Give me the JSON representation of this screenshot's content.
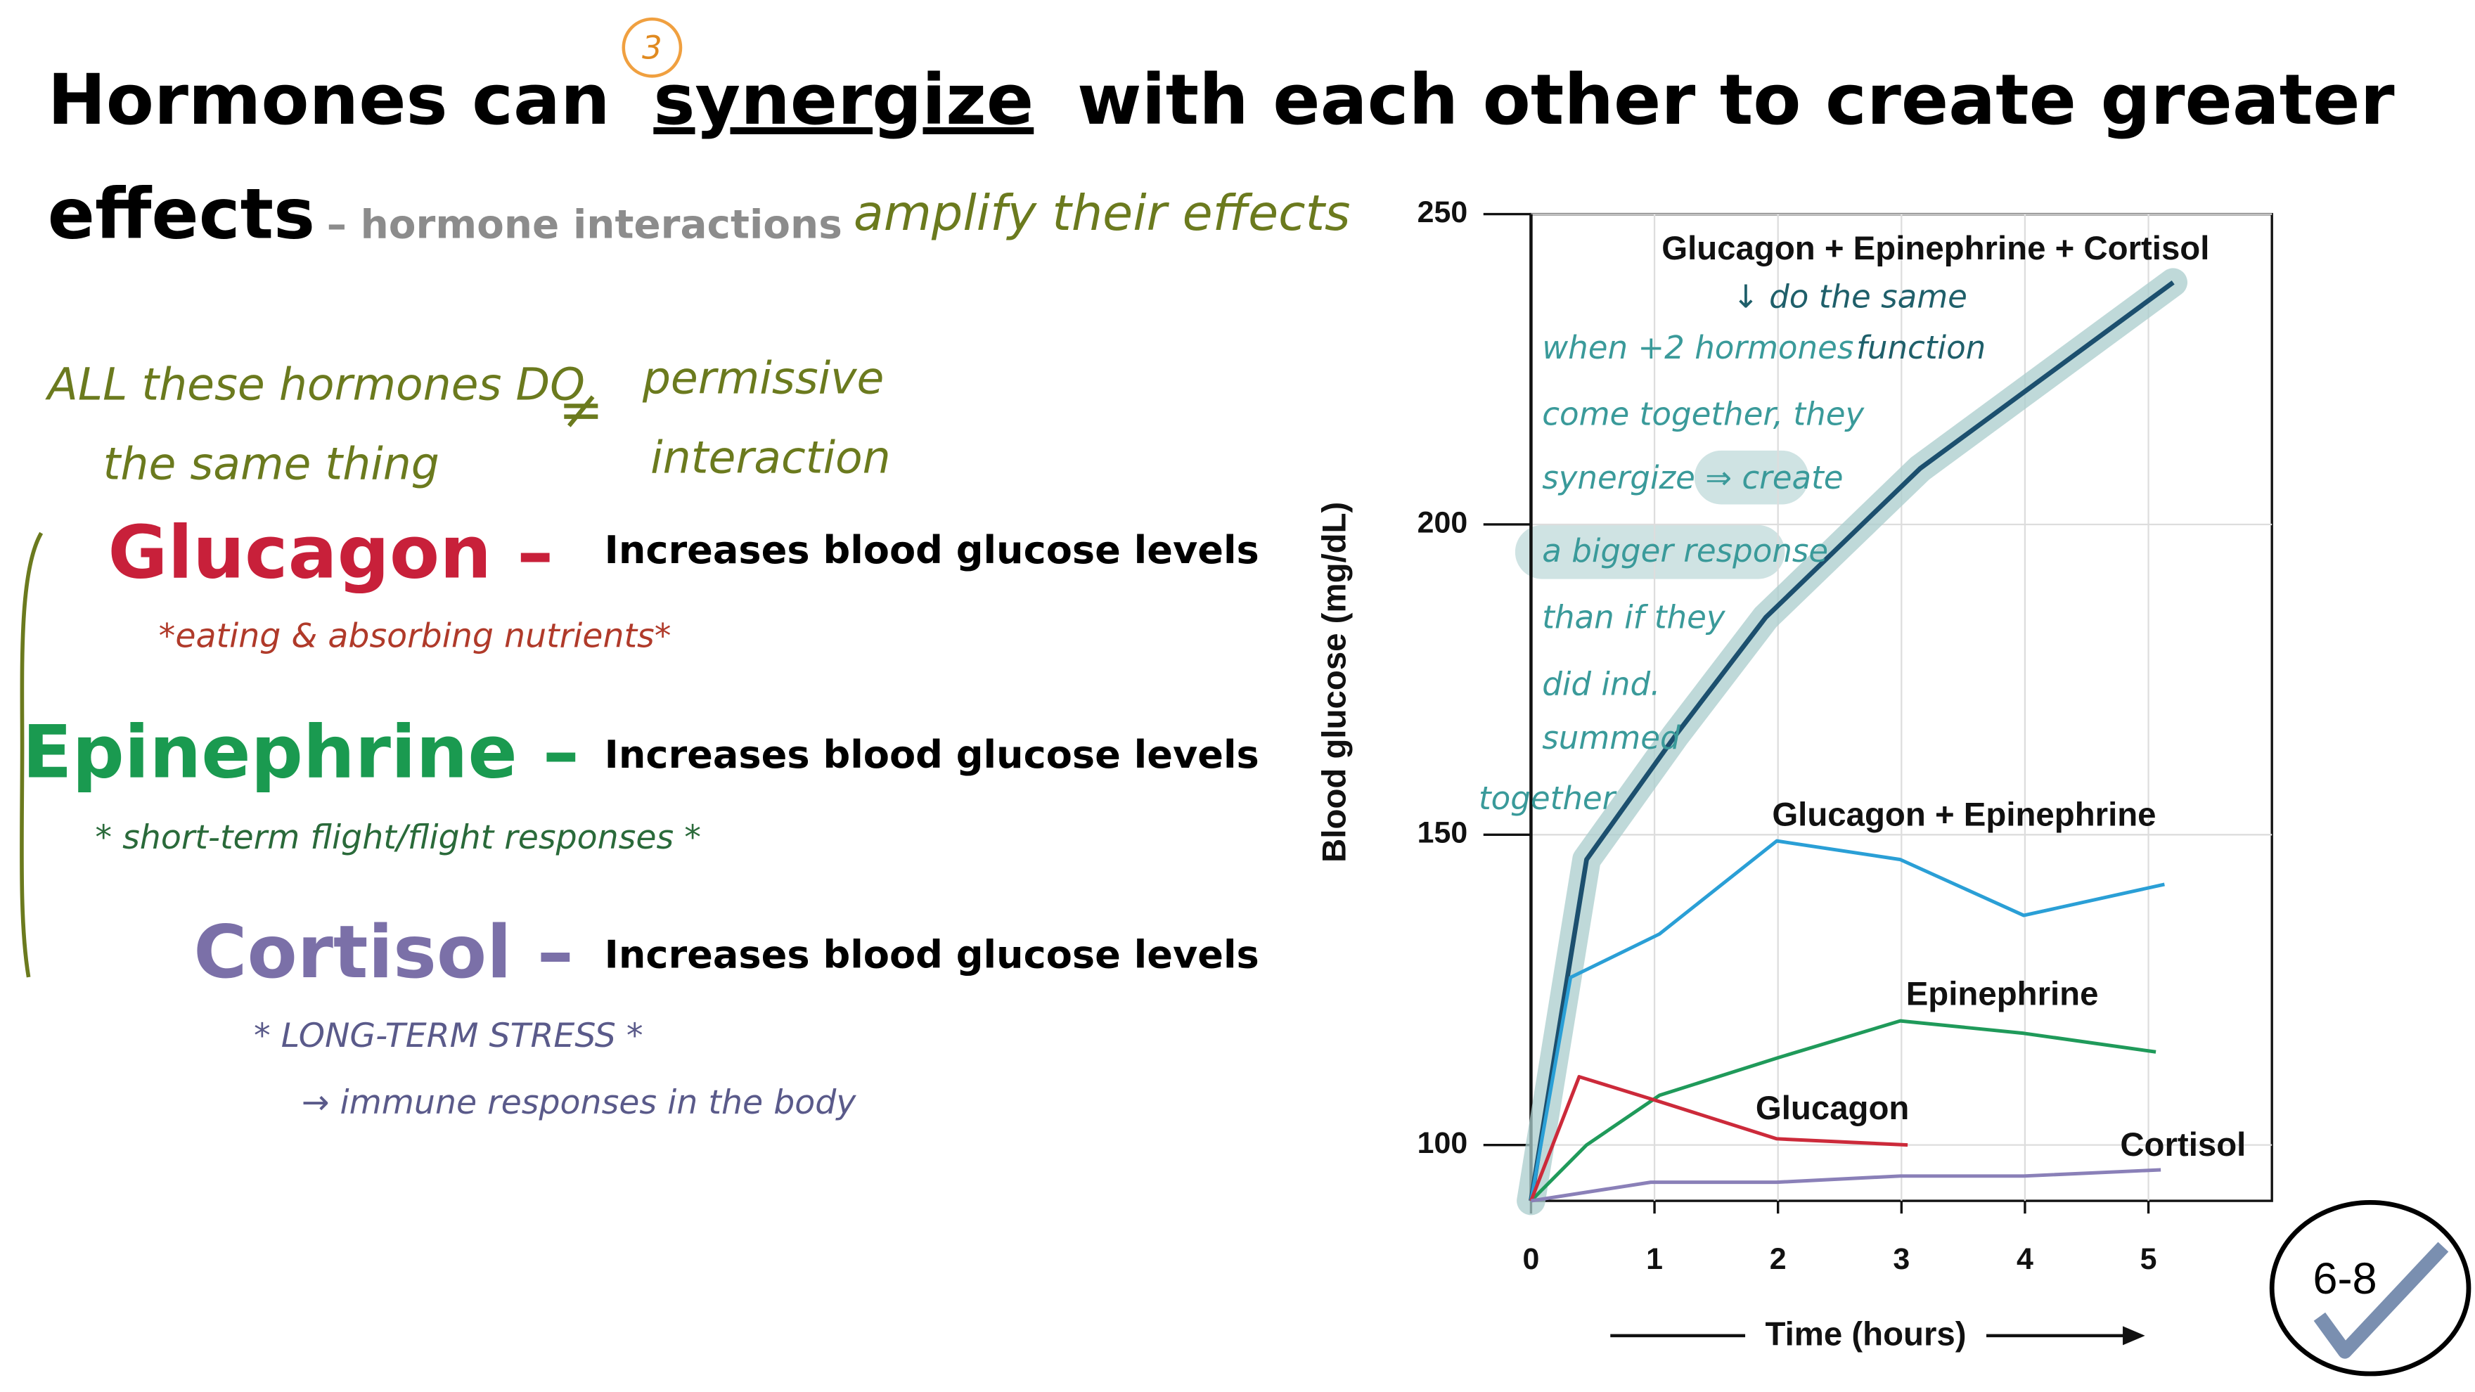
{
  "title": {
    "start": "Hormones can",
    "emphasis": "synergize",
    "end": "with each other to create greater",
    "line2": "effects",
    "subtitle": "– hormone interactions"
  },
  "handwritten": {
    "step": "3",
    "amplify": "amplify their effects",
    "same_thing": [
      "ALL these hormones DO",
      "the same thing"
    ],
    "not_equal": "≠",
    "permissive": [
      "permissive",
      "interaction"
    ]
  },
  "hormones": [
    {
      "name": "Glucagon –",
      "effect": "Increases blood glucose levels",
      "notes": [
        "*eating & absorbing nutrients*"
      ]
    },
    {
      "name": "Epinephrine –",
      "effect": "Increases blood glucose levels",
      "notes": [
        "* short-term flight/flight responses *"
      ]
    },
    {
      "name": "Cortisol –",
      "effect": "Increases blood glucose levels",
      "notes": [
        "* LONG-TERM STRESS *",
        "→ immune responses in the body"
      ]
    }
  ],
  "chart_data": {
    "type": "line",
    "x_label": "Time (hours)",
    "y_label": "Blood glucose (mg/dL)",
    "xlim": [
      0,
      6
    ],
    "xticks": [
      0,
      1,
      2,
      3,
      4,
      5
    ],
    "ylim": [
      91,
      250
    ],
    "yticks": [
      100,
      150,
      200,
      250
    ],
    "grid": true,
    "series": [
      {
        "name": "Glucagon + Epinephrine + Cortisol",
        "color": "#1c4f6e",
        "x": [
          0,
          0.45,
          1.17,
          1.9,
          3.15,
          5.2
        ],
        "values": [
          91,
          146,
          166,
          185,
          209,
          239
        ]
      },
      {
        "name": "Glucagon + Epinephrine",
        "color": "#2a9fd6",
        "x": [
          0,
          0.32,
          1.04,
          1.99,
          2.99,
          3.99,
          5.13
        ],
        "values": [
          91,
          127,
          134,
          149,
          146,
          137,
          142
        ]
      },
      {
        "name": "Epinephrine",
        "color": "#1f9a5a",
        "x": [
          0,
          0.45,
          1.04,
          1.99,
          2.99,
          3.99,
          5.06
        ],
        "values": [
          91,
          100,
          108,
          114,
          120,
          118,
          115
        ]
      },
      {
        "name": "Glucagon",
        "color": "#cc2a3a",
        "x": [
          0,
          0.39,
          1.04,
          1.99,
          3.05
        ],
        "values": [
          91,
          111,
          107,
          101,
          100
        ]
      },
      {
        "name": "Cortisol",
        "color": "#8a80b8",
        "x": [
          0,
          0.97,
          1.99,
          2.99,
          3.99,
          5.1
        ],
        "values": [
          91,
          94,
          94,
          95,
          95,
          96
        ]
      }
    ],
    "annotations": {
      "arrow_note": [
        "↓ do the same",
        "function"
      ],
      "note": [
        "when +2 hormones",
        "come together, they",
        "synergize ⇒ create",
        "a bigger response",
        "than if they",
        "did ind.",
        "summed",
        "together"
      ]
    }
  },
  "badge": "6-8"
}
